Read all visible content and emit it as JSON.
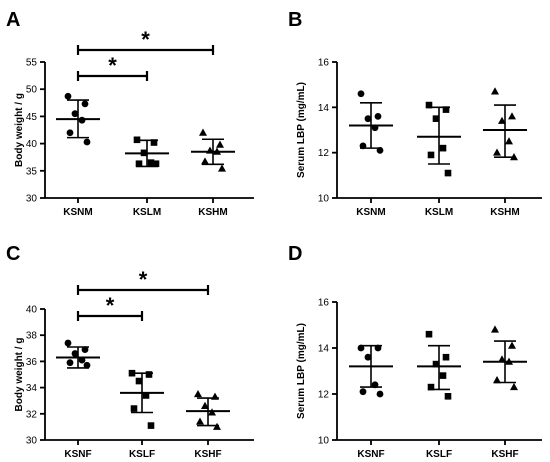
{
  "chart_data": [
    {
      "type": "scatter",
      "panel": "A",
      "ylabel": "Body weight / g",
      "ylim": [
        30,
        55
      ],
      "yticks": [
        30,
        35,
        40,
        45,
        50,
        55
      ],
      "categories": [
        "KSNM",
        "KSLM",
        "KSHM"
      ],
      "markers": [
        "circle",
        "square",
        "triangle"
      ],
      "series": [
        {
          "points": [
            48.7,
            47.3,
            45.5,
            44.3,
            42.0,
            40.3
          ],
          "mean": 44.5,
          "sd_low": 41.1,
          "sd_high": 48.0
        },
        {
          "points": [
            40.7,
            40.2,
            38.3,
            36.5,
            36.3,
            36.3
          ],
          "mean": 38.2,
          "sd_low": 35.8,
          "sd_high": 40.6
        },
        {
          "points": [
            42.0,
            39.8,
            38.7,
            38.5,
            36.7,
            35.4
          ],
          "mean": 38.5,
          "sd_low": 36.2,
          "sd_high": 40.8
        }
      ],
      "significance": [
        {
          "from": 0,
          "to": 1,
          "label": "*",
          "level": 1
        },
        {
          "from": 0,
          "to": 2,
          "label": "*",
          "level": 2
        }
      ]
    },
    {
      "type": "scatter",
      "panel": "B",
      "ylabel": "Serum LBP (mg/mL)",
      "ylim": [
        10,
        16
      ],
      "yticks": [
        10,
        12,
        14,
        16
      ],
      "categories": [
        "KSNM",
        "KSLM",
        "KSHM"
      ],
      "markers": [
        "circle",
        "square",
        "triangle"
      ],
      "series": [
        {
          "points": [
            14.6,
            13.6,
            13.5,
            13.1,
            12.3,
            12.1
          ],
          "mean": 13.2,
          "sd_low": 12.2,
          "sd_high": 14.2
        },
        {
          "points": [
            14.1,
            13.9,
            13.5,
            12.2,
            11.9,
            11.1
          ],
          "mean": 12.7,
          "sd_low": 11.5,
          "sd_high": 14.0
        },
        {
          "points": [
            14.7,
            13.6,
            13.4,
            12.5,
            12.0,
            11.8
          ],
          "mean": 13.0,
          "sd_low": 11.8,
          "sd_high": 14.1
        }
      ],
      "significance": []
    },
    {
      "type": "scatter",
      "panel": "C",
      "ylabel": "Body weight / g",
      "ylim": [
        30,
        40
      ],
      "yticks": [
        30,
        32,
        34,
        36,
        38,
        40
      ],
      "categories": [
        "KSNF",
        "KSLF",
        "KSHF"
      ],
      "markers": [
        "circle",
        "square",
        "triangle"
      ],
      "series": [
        {
          "points": [
            37.4,
            36.9,
            36.6,
            36.1,
            35.9,
            35.7
          ],
          "mean": 36.3,
          "sd_low": 35.5,
          "sd_high": 37.1
        },
        {
          "points": [
            35.1,
            35.0,
            34.5,
            33.4,
            32.4,
            31.1
          ],
          "mean": 33.6,
          "sd_low": 32.1,
          "sd_high": 35.1
        },
        {
          "points": [
            33.5,
            33.3,
            32.6,
            32.1,
            31.4,
            31.0
          ],
          "mean": 32.2,
          "sd_low": 31.1,
          "sd_high": 33.2
        }
      ],
      "significance": [
        {
          "from": 0,
          "to": 1,
          "label": "*",
          "level": 1
        },
        {
          "from": 0,
          "to": 2,
          "label": "*",
          "level": 2
        }
      ]
    },
    {
      "type": "scatter",
      "panel": "D",
      "ylabel": "Serum LBP (mg/mL)",
      "ylim": [
        10,
        16
      ],
      "yticks": [
        10,
        12,
        14,
        16
      ],
      "categories": [
        "KSNF",
        "KSLF",
        "KSHF"
      ],
      "markers": [
        "circle",
        "square",
        "triangle"
      ],
      "series": [
        {
          "points": [
            14.0,
            14.0,
            13.6,
            12.4,
            12.1,
            12.0
          ],
          "mean": 13.2,
          "sd_low": 12.3,
          "sd_high": 14.1
        },
        {
          "points": [
            14.6,
            13.6,
            13.3,
            12.8,
            12.3,
            11.9
          ],
          "mean": 13.2,
          "sd_low": 12.2,
          "sd_high": 14.1
        },
        {
          "points": [
            14.8,
            14.1,
            13.5,
            13.4,
            12.6,
            12.3
          ],
          "mean": 13.4,
          "sd_low": 12.5,
          "sd_high": 14.3
        }
      ],
      "significance": []
    }
  ]
}
